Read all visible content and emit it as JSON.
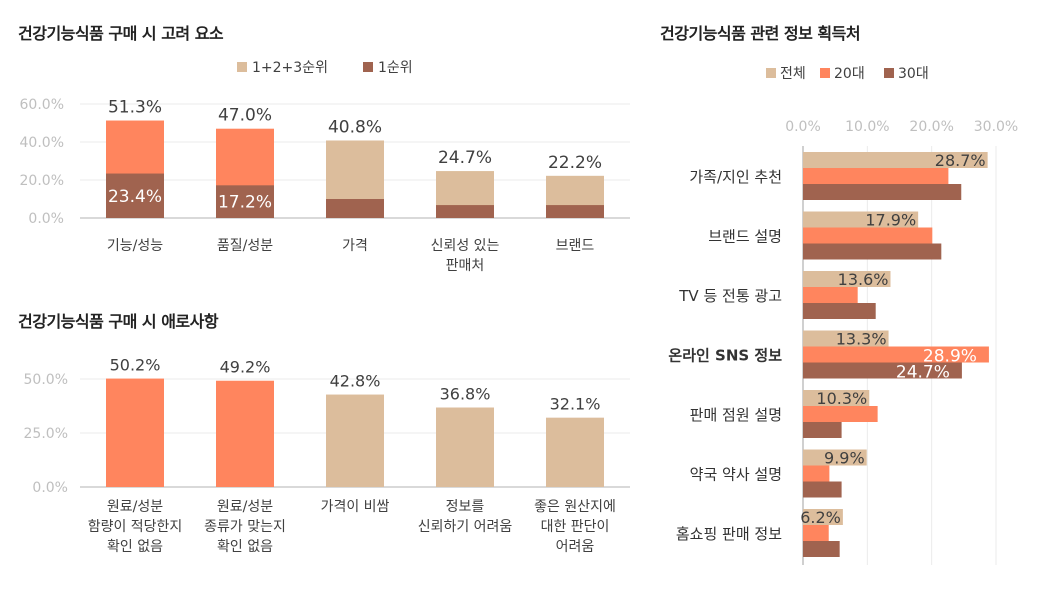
{
  "colors": {
    "total": "#dcbd9c",
    "first": "#a0634f",
    "highlight": "#ff855e",
    "age20": "#ff855e",
    "age30": "#a0634f",
    "grid": "#ebebeb",
    "tick": "#bfbfbf"
  },
  "chart_data": [
    {
      "type": "bar",
      "title": "건강기능식품  구매 시 고려 요소",
      "stacked_overlay": true,
      "categories": [
        "기능/성능",
        "품질/성분",
        "가격",
        "신뢰성 있는\n판매처",
        "브랜드"
      ],
      "series": [
        {
          "name": "1+2+3순위",
          "values": [
            51.3,
            47.0,
            40.8,
            24.7,
            22.2
          ]
        },
        {
          "name": "1순위",
          "values": [
            23.4,
            17.2,
            10.0,
            6.8,
            6.8
          ]
        }
      ],
      "data_labels": {
        "total": [
          "51.3%",
          "47.0%",
          "40.8%",
          "24.7%",
          "22.2%"
        ],
        "first": [
          "23.4%",
          "17.2%",
          "",
          "",
          ""
        ]
      },
      "yticks": [
        "0.0%",
        "20.0%",
        "40.0%",
        "60.0%"
      ],
      "ylim": [
        0,
        60
      ],
      "grid": true,
      "legend": "top"
    },
    {
      "type": "bar",
      "title": "건강기능식품  구매 시 애로사항",
      "categories": [
        "원료/성분\n함량이 적당한지\n확인 없음",
        "원료/성분\n종류가 맞는지\n확인 없음",
        "가격이 비쌈",
        "정보를\n신뢰하기 어려움",
        "좋은 원산지에\n대한 판단이\n어려움"
      ],
      "values": [
        50.2,
        49.2,
        42.8,
        36.8,
        32.1
      ],
      "data_labels": [
        "50.2%",
        "49.2%",
        "42.8%",
        "36.8%",
        "32.1%"
      ],
      "yticks": [
        "0.0%",
        "25.0%",
        "50.0%"
      ],
      "ylim": [
        0,
        50
      ],
      "grid": true
    },
    {
      "type": "bar",
      "orientation": "horizontal",
      "title": "건강기능식품  관련 정보 획득처",
      "categories": [
        "가족/지인 추천",
        "브랜드 설명",
        "TV 등 전통 광고",
        "온라인 SNS 정보",
        "판매 점원 설명",
        "약국 약사 설명",
        "홈쇼핑 판매 정보"
      ],
      "series": [
        {
          "name": "전체",
          "values": [
            28.7,
            17.9,
            13.6,
            13.3,
            10.3,
            9.9,
            6.2
          ]
        },
        {
          "name": "20대",
          "values": [
            22.6,
            20.1,
            8.5,
            28.9,
            11.6,
            4.1,
            4.0
          ]
        },
        {
          "name": "30대",
          "values": [
            24.6,
            21.5,
            11.3,
            24.7,
            6.0,
            6.0,
            5.7
          ]
        }
      ],
      "data_labels": {
        "전체": [
          "28.7%",
          "17.9%",
          "13.6%",
          "13.3%",
          "10.3%",
          "9.9%",
          "6.2%"
        ],
        "20대": [
          "",
          "",
          "",
          "28.9%",
          "",
          "",
          ""
        ],
        "30대": [
          "",
          "",
          "",
          "24.7%",
          "",
          "",
          ""
        ]
      },
      "xticks": [
        "0.0%",
        "10.0%",
        "20.0%",
        "30.0%"
      ],
      "xlim": [
        0,
        30
      ],
      "grid": true,
      "legend": "top",
      "bold_category": "온라인 SNS 정보"
    }
  ]
}
